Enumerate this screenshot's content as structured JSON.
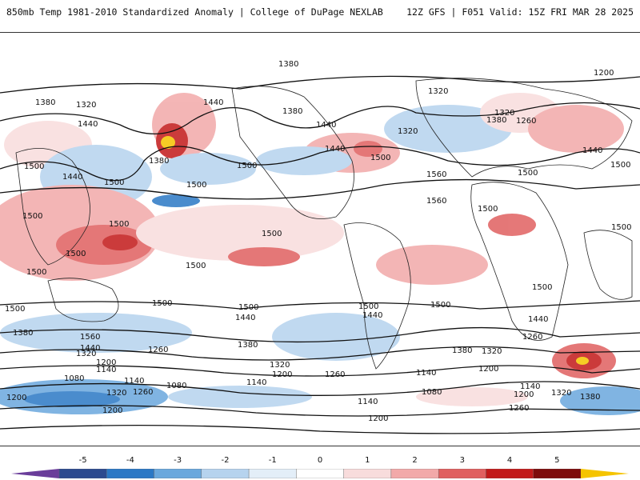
{
  "header": {
    "title": "850mb Temp 1981-2010 Standardized Anomaly | College of DuPage NEXLAB",
    "run_info": "12Z GFS | F051 Valid: 15Z FRI MAR 28 2025"
  },
  "contour_labels": [
    {
      "text": "1380"
    },
    {
      "text": "1200"
    },
    {
      "text": "1380"
    },
    {
      "text": "1320"
    },
    {
      "text": "1440"
    },
    {
      "text": "1380"
    },
    {
      "text": "1440"
    },
    {
      "text": "1320"
    },
    {
      "text": "1320"
    },
    {
      "text": "1320"
    },
    {
      "text": "1380"
    },
    {
      "text": "1260"
    },
    {
      "text": "1440"
    },
    {
      "text": "1440"
    },
    {
      "text": "1500"
    },
    {
      "text": "1440"
    },
    {
      "text": "1500"
    },
    {
      "text": "1440"
    },
    {
      "text": "1500"
    },
    {
      "text": "1380"
    },
    {
      "text": "1500"
    },
    {
      "text": "1500"
    },
    {
      "text": "1560"
    },
    {
      "text": "1500"
    },
    {
      "text": "1500"
    },
    {
      "text": "1500"
    },
    {
      "text": "1560"
    },
    {
      "text": "1500"
    },
    {
      "text": "1500"
    },
    {
      "text": "1500"
    },
    {
      "text": "1500"
    },
    {
      "text": "1500"
    },
    {
      "text": "1500"
    },
    {
      "text": "1500"
    },
    {
      "text": "1500"
    },
    {
      "text": "1500"
    },
    {
      "text": "1500"
    },
    {
      "text": "1500"
    },
    {
      "text": "1500"
    },
    {
      "text": "1440"
    },
    {
      "text": "1440"
    },
    {
      "text": "1500"
    },
    {
      "text": "1440"
    },
    {
      "text": "1380"
    },
    {
      "text": "1560"
    },
    {
      "text": "1440"
    },
    {
      "text": "1320"
    },
    {
      "text": "1200"
    },
    {
      "text": "1140"
    },
    {
      "text": "1260"
    },
    {
      "text": "1380"
    },
    {
      "text": "1320"
    },
    {
      "text": "1200"
    },
    {
      "text": "1260"
    },
    {
      "text": "1380"
    },
    {
      "text": "1320"
    },
    {
      "text": "1260"
    },
    {
      "text": "1200"
    },
    {
      "text": "1080"
    },
    {
      "text": "1140"
    },
    {
      "text": "1080"
    },
    {
      "text": "1140"
    },
    {
      "text": "1140"
    },
    {
      "text": "1080"
    },
    {
      "text": "1140"
    },
    {
      "text": "1200"
    },
    {
      "text": "1320"
    },
    {
      "text": "1260"
    },
    {
      "text": "1200"
    },
    {
      "text": "1320"
    },
    {
      "text": "1380"
    },
    {
      "text": "1200"
    },
    {
      "text": "1140"
    },
    {
      "text": "1200"
    },
    {
      "text": "1260"
    }
  ],
  "colorbar": {
    "ticks": [
      "-5",
      "-4",
      "-3",
      "-2",
      "-1",
      "0",
      "1",
      "2",
      "3",
      "4",
      "5"
    ],
    "colors": [
      "#6a3d9a",
      "#2c4a8f",
      "#2b78c5",
      "#6aa8dd",
      "#b6d3ee",
      "#e3eef8",
      "#ffffff",
      "#f8dcdc",
      "#f2a9a9",
      "#e06060",
      "#c21a1a",
      "#7d0b0b",
      "#f5c400"
    ]
  }
}
